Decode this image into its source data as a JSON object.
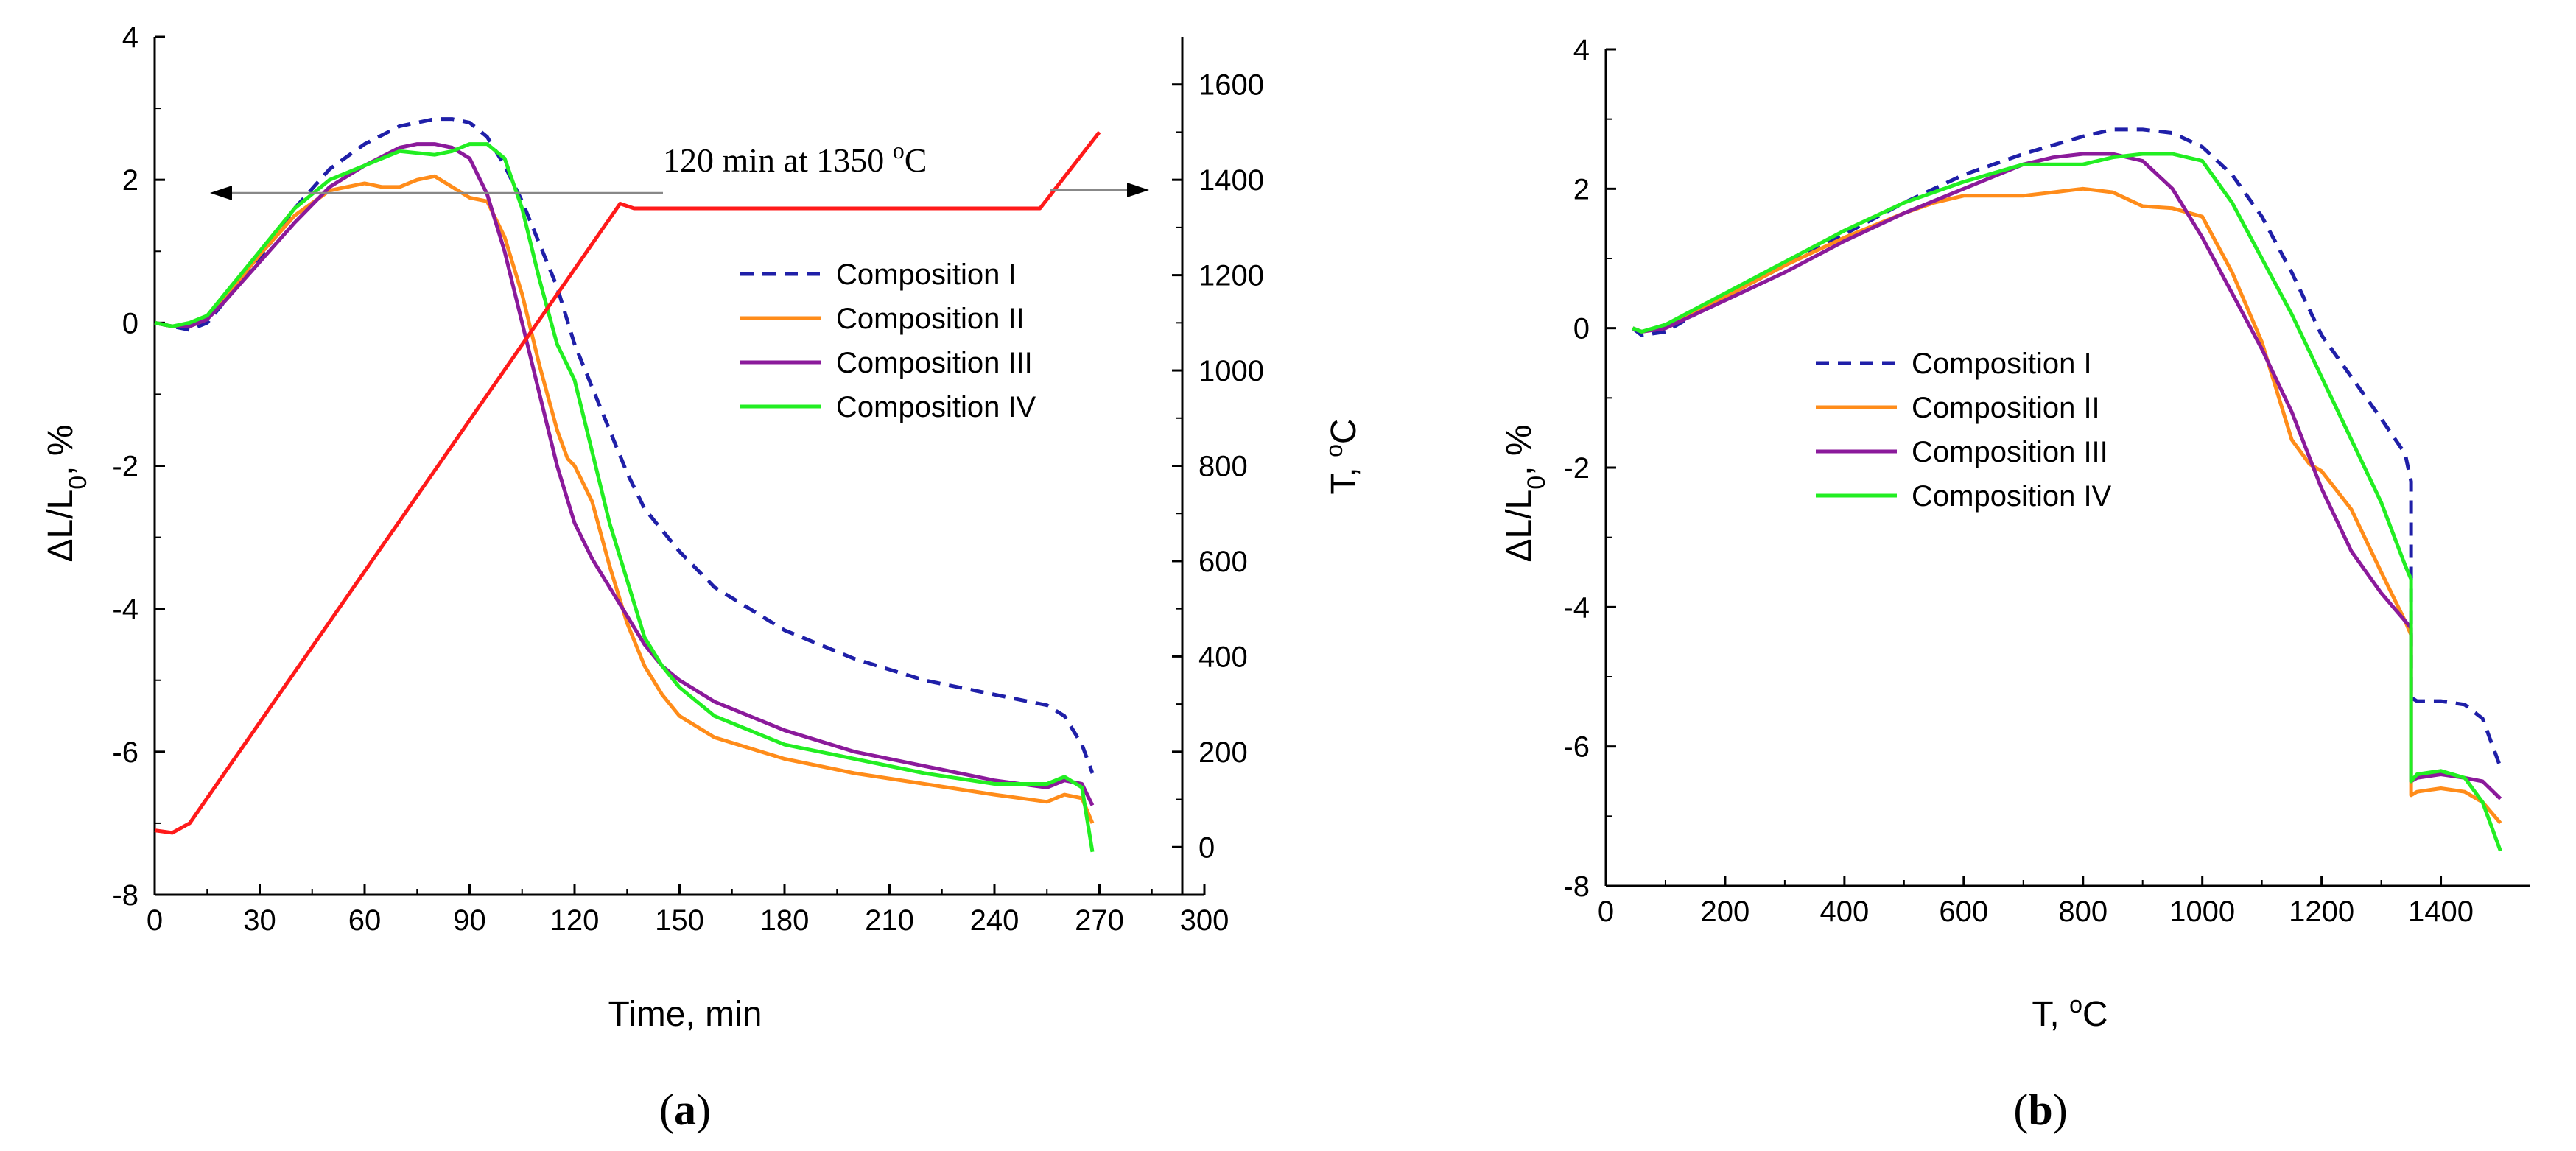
{
  "chart_data": [
    {
      "panel": "a",
      "panel_label": "(a)",
      "type": "line",
      "xlabel": "Time, min",
      "ylabel": "ΔL/L0, %",
      "y2label": "T, °C",
      "xlim": [
        0,
        300
      ],
      "ylim": [
        -8,
        4
      ],
      "y2lim": [
        -100,
        1700
      ],
      "xticks": [
        0,
        30,
        60,
        90,
        120,
        150,
        180,
        210,
        240,
        270,
        300
      ],
      "yticks": [
        -8,
        -6,
        -4,
        -2,
        0,
        2,
        4
      ],
      "y2ticks": [
        0,
        200,
        400,
        600,
        800,
        1000,
        1200,
        1400,
        1600
      ],
      "annotation": "120 min at 1350 °C",
      "series": [
        {
          "name": "Composition I",
          "color": "#1f1fa8",
          "dash": "18,12",
          "axis": "left",
          "x": [
            0,
            5,
            10,
            15,
            20,
            30,
            40,
            50,
            60,
            70,
            80,
            85,
            90,
            95,
            100,
            105,
            110,
            115,
            120,
            125,
            130,
            135,
            140,
            150,
            160,
            180,
            200,
            220,
            240,
            250,
            255,
            260,
            265,
            268
          ],
          "y": [
            0,
            -0.05,
            -0.1,
            0,
            0.3,
            0.9,
            1.6,
            2.15,
            2.5,
            2.75,
            2.85,
            2.85,
            2.8,
            2.6,
            2.2,
            1.7,
            1.1,
            0.5,
            -0.3,
            -0.9,
            -1.5,
            -2.1,
            -2.6,
            -3.2,
            -3.7,
            -4.3,
            -4.7,
            -5.0,
            -5.2,
            -5.3,
            -5.35,
            -5.5,
            -5.9,
            -6.3
          ]
        },
        {
          "name": "Composition II",
          "color": "#ff8c1a",
          "dash": "",
          "axis": "left",
          "x": [
            0,
            5,
            10,
            15,
            20,
            30,
            40,
            50,
            60,
            65,
            70,
            75,
            80,
            85,
            90,
            95,
            100,
            105,
            110,
            115,
            118,
            120,
            125,
            130,
            135,
            140,
            145,
            150,
            160,
            180,
            200,
            220,
            240,
            255,
            260,
            265,
            268
          ],
          "y": [
            0,
            -0.05,
            -0.05,
            0.05,
            0.35,
            0.95,
            1.5,
            1.85,
            1.95,
            1.9,
            1.9,
            2.0,
            2.05,
            1.9,
            1.75,
            1.7,
            1.2,
            0.4,
            -0.6,
            -1.5,
            -1.9,
            -2.0,
            -2.5,
            -3.4,
            -4.2,
            -4.8,
            -5.2,
            -5.5,
            -5.8,
            -6.1,
            -6.3,
            -6.45,
            -6.6,
            -6.7,
            -6.6,
            -6.65,
            -7.0
          ]
        },
        {
          "name": "Composition III",
          "color": "#8b1a9b",
          "dash": "",
          "axis": "left",
          "x": [
            0,
            5,
            10,
            15,
            20,
            30,
            40,
            50,
            60,
            70,
            75,
            80,
            85,
            90,
            95,
            100,
            105,
            110,
            115,
            120,
            125,
            130,
            135,
            140,
            145,
            150,
            160,
            180,
            200,
            220,
            240,
            255,
            260,
            265,
            268
          ],
          "y": [
            0,
            -0.05,
            -0.05,
            0.05,
            0.3,
            0.85,
            1.4,
            1.9,
            2.2,
            2.45,
            2.5,
            2.5,
            2.45,
            2.3,
            1.8,
            1.0,
            0.0,
            -1.0,
            -2.0,
            -2.8,
            -3.3,
            -3.7,
            -4.1,
            -4.5,
            -4.8,
            -5.0,
            -5.3,
            -5.7,
            -6.0,
            -6.2,
            -6.4,
            -6.5,
            -6.4,
            -6.45,
            -6.75
          ]
        },
        {
          "name": "Composition IV",
          "color": "#22ee22",
          "dash": "",
          "axis": "left",
          "x": [
            0,
            5,
            10,
            15,
            20,
            30,
            40,
            50,
            60,
            70,
            80,
            85,
            90,
            95,
            100,
            105,
            110,
            115,
            118,
            120,
            125,
            130,
            135,
            140,
            145,
            150,
            160,
            180,
            200,
            220,
            240,
            255,
            260,
            265,
            268
          ],
          "y": [
            0,
            -0.05,
            0.0,
            0.1,
            0.4,
            1.0,
            1.6,
            2.0,
            2.2,
            2.4,
            2.35,
            2.4,
            2.5,
            2.5,
            2.3,
            1.6,
            0.6,
            -0.3,
            -0.6,
            -0.8,
            -1.8,
            -2.8,
            -3.6,
            -4.4,
            -4.8,
            -5.1,
            -5.5,
            -5.9,
            -6.1,
            -6.3,
            -6.45,
            -6.45,
            -6.35,
            -6.5,
            -7.4
          ]
        },
        {
          "name": "T",
          "color": "#ff1a1a",
          "dash": "",
          "axis": "right",
          "x": [
            0,
            5,
            10,
            133,
            137,
            253,
            270
          ],
          "y": [
            35,
            30,
            50,
            1350,
            1340,
            1340,
            1500
          ]
        }
      ],
      "legend": [
        "Composition I",
        "Composition II",
        "Composition III",
        "Composition IV"
      ]
    },
    {
      "panel": "b",
      "panel_label": "(b)",
      "type": "line",
      "xlabel": "T, °C",
      "ylabel": "ΔL/L0, %",
      "xlim": [
        0,
        1550
      ],
      "ylim": [
        -8,
        4
      ],
      "xticks": [
        0,
        200,
        400,
        600,
        800,
        1000,
        1200,
        1400
      ],
      "yticks": [
        -8,
        -6,
        -4,
        -2,
        0,
        2,
        4
      ],
      "series": [
        {
          "name": "Composition I",
          "color": "#1f1fa8",
          "dash": "18,12",
          "x": [
            45,
            60,
            100,
            200,
            300,
            400,
            500,
            600,
            700,
            800,
            850,
            900,
            950,
            1000,
            1050,
            1100,
            1150,
            1200,
            1250,
            1300,
            1340,
            1350,
            1350,
            1360,
            1400,
            1440,
            1470,
            1500
          ],
          "y": [
            0,
            -0.1,
            -0.05,
            0.45,
            0.9,
            1.35,
            1.8,
            2.2,
            2.5,
            2.75,
            2.85,
            2.85,
            2.8,
            2.6,
            2.2,
            1.6,
            0.8,
            -0.1,
            -0.7,
            -1.3,
            -1.8,
            -2.2,
            -5.3,
            -5.35,
            -5.35,
            -5.4,
            -5.6,
            -6.3
          ]
        },
        {
          "name": "Composition II",
          "color": "#ff8c1a",
          "dash": "",
          "x": [
            45,
            60,
            100,
            200,
            300,
            400,
            500,
            550,
            600,
            650,
            700,
            750,
            800,
            850,
            900,
            950,
            1000,
            1050,
            1100,
            1150,
            1180,
            1200,
            1250,
            1300,
            1340,
            1350,
            1350,
            1360,
            1400,
            1440,
            1470,
            1500
          ],
          "y": [
            0,
            -0.05,
            0.0,
            0.45,
            0.9,
            1.3,
            1.65,
            1.8,
            1.9,
            1.9,
            1.9,
            1.95,
            2.0,
            1.95,
            1.75,
            1.72,
            1.6,
            0.8,
            -0.2,
            -1.6,
            -1.95,
            -2.05,
            -2.6,
            -3.5,
            -4.2,
            -4.4,
            -6.7,
            -6.65,
            -6.6,
            -6.65,
            -6.8,
            -7.1
          ]
        },
        {
          "name": "Composition III",
          "color": "#8b1a9b",
          "dash": "",
          "x": [
            45,
            60,
            100,
            200,
            300,
            400,
            500,
            600,
            700,
            750,
            800,
            850,
            900,
            950,
            1000,
            1050,
            1100,
            1150,
            1200,
            1250,
            1300,
            1340,
            1350,
            1350,
            1360,
            1400,
            1440,
            1470,
            1500
          ],
          "y": [
            0,
            -0.05,
            0.0,
            0.4,
            0.8,
            1.25,
            1.65,
            2.0,
            2.35,
            2.45,
            2.5,
            2.5,
            2.4,
            2.0,
            1.3,
            0.5,
            -0.3,
            -1.2,
            -2.3,
            -3.2,
            -3.8,
            -4.2,
            -4.3,
            -6.5,
            -6.45,
            -6.4,
            -6.45,
            -6.5,
            -6.75
          ]
        },
        {
          "name": "Composition IV",
          "color": "#22ee22",
          "dash": "",
          "x": [
            45,
            60,
            100,
            200,
            300,
            400,
            500,
            600,
            700,
            800,
            850,
            900,
            950,
            1000,
            1050,
            1100,
            1150,
            1200,
            1250,
            1300,
            1340,
            1350,
            1350,
            1360,
            1400,
            1440,
            1470,
            1500
          ],
          "y": [
            0,
            -0.05,
            0.05,
            0.5,
            0.95,
            1.4,
            1.8,
            2.1,
            2.35,
            2.35,
            2.45,
            2.5,
            2.5,
            2.4,
            1.8,
            1.0,
            0.2,
            -0.7,
            -1.6,
            -2.5,
            -3.4,
            -3.6,
            -6.5,
            -6.4,
            -6.35,
            -6.45,
            -6.8,
            -7.5
          ]
        }
      ],
      "legend": [
        "Composition I",
        "Composition II",
        "Composition III",
        "Composition IV"
      ]
    }
  ]
}
